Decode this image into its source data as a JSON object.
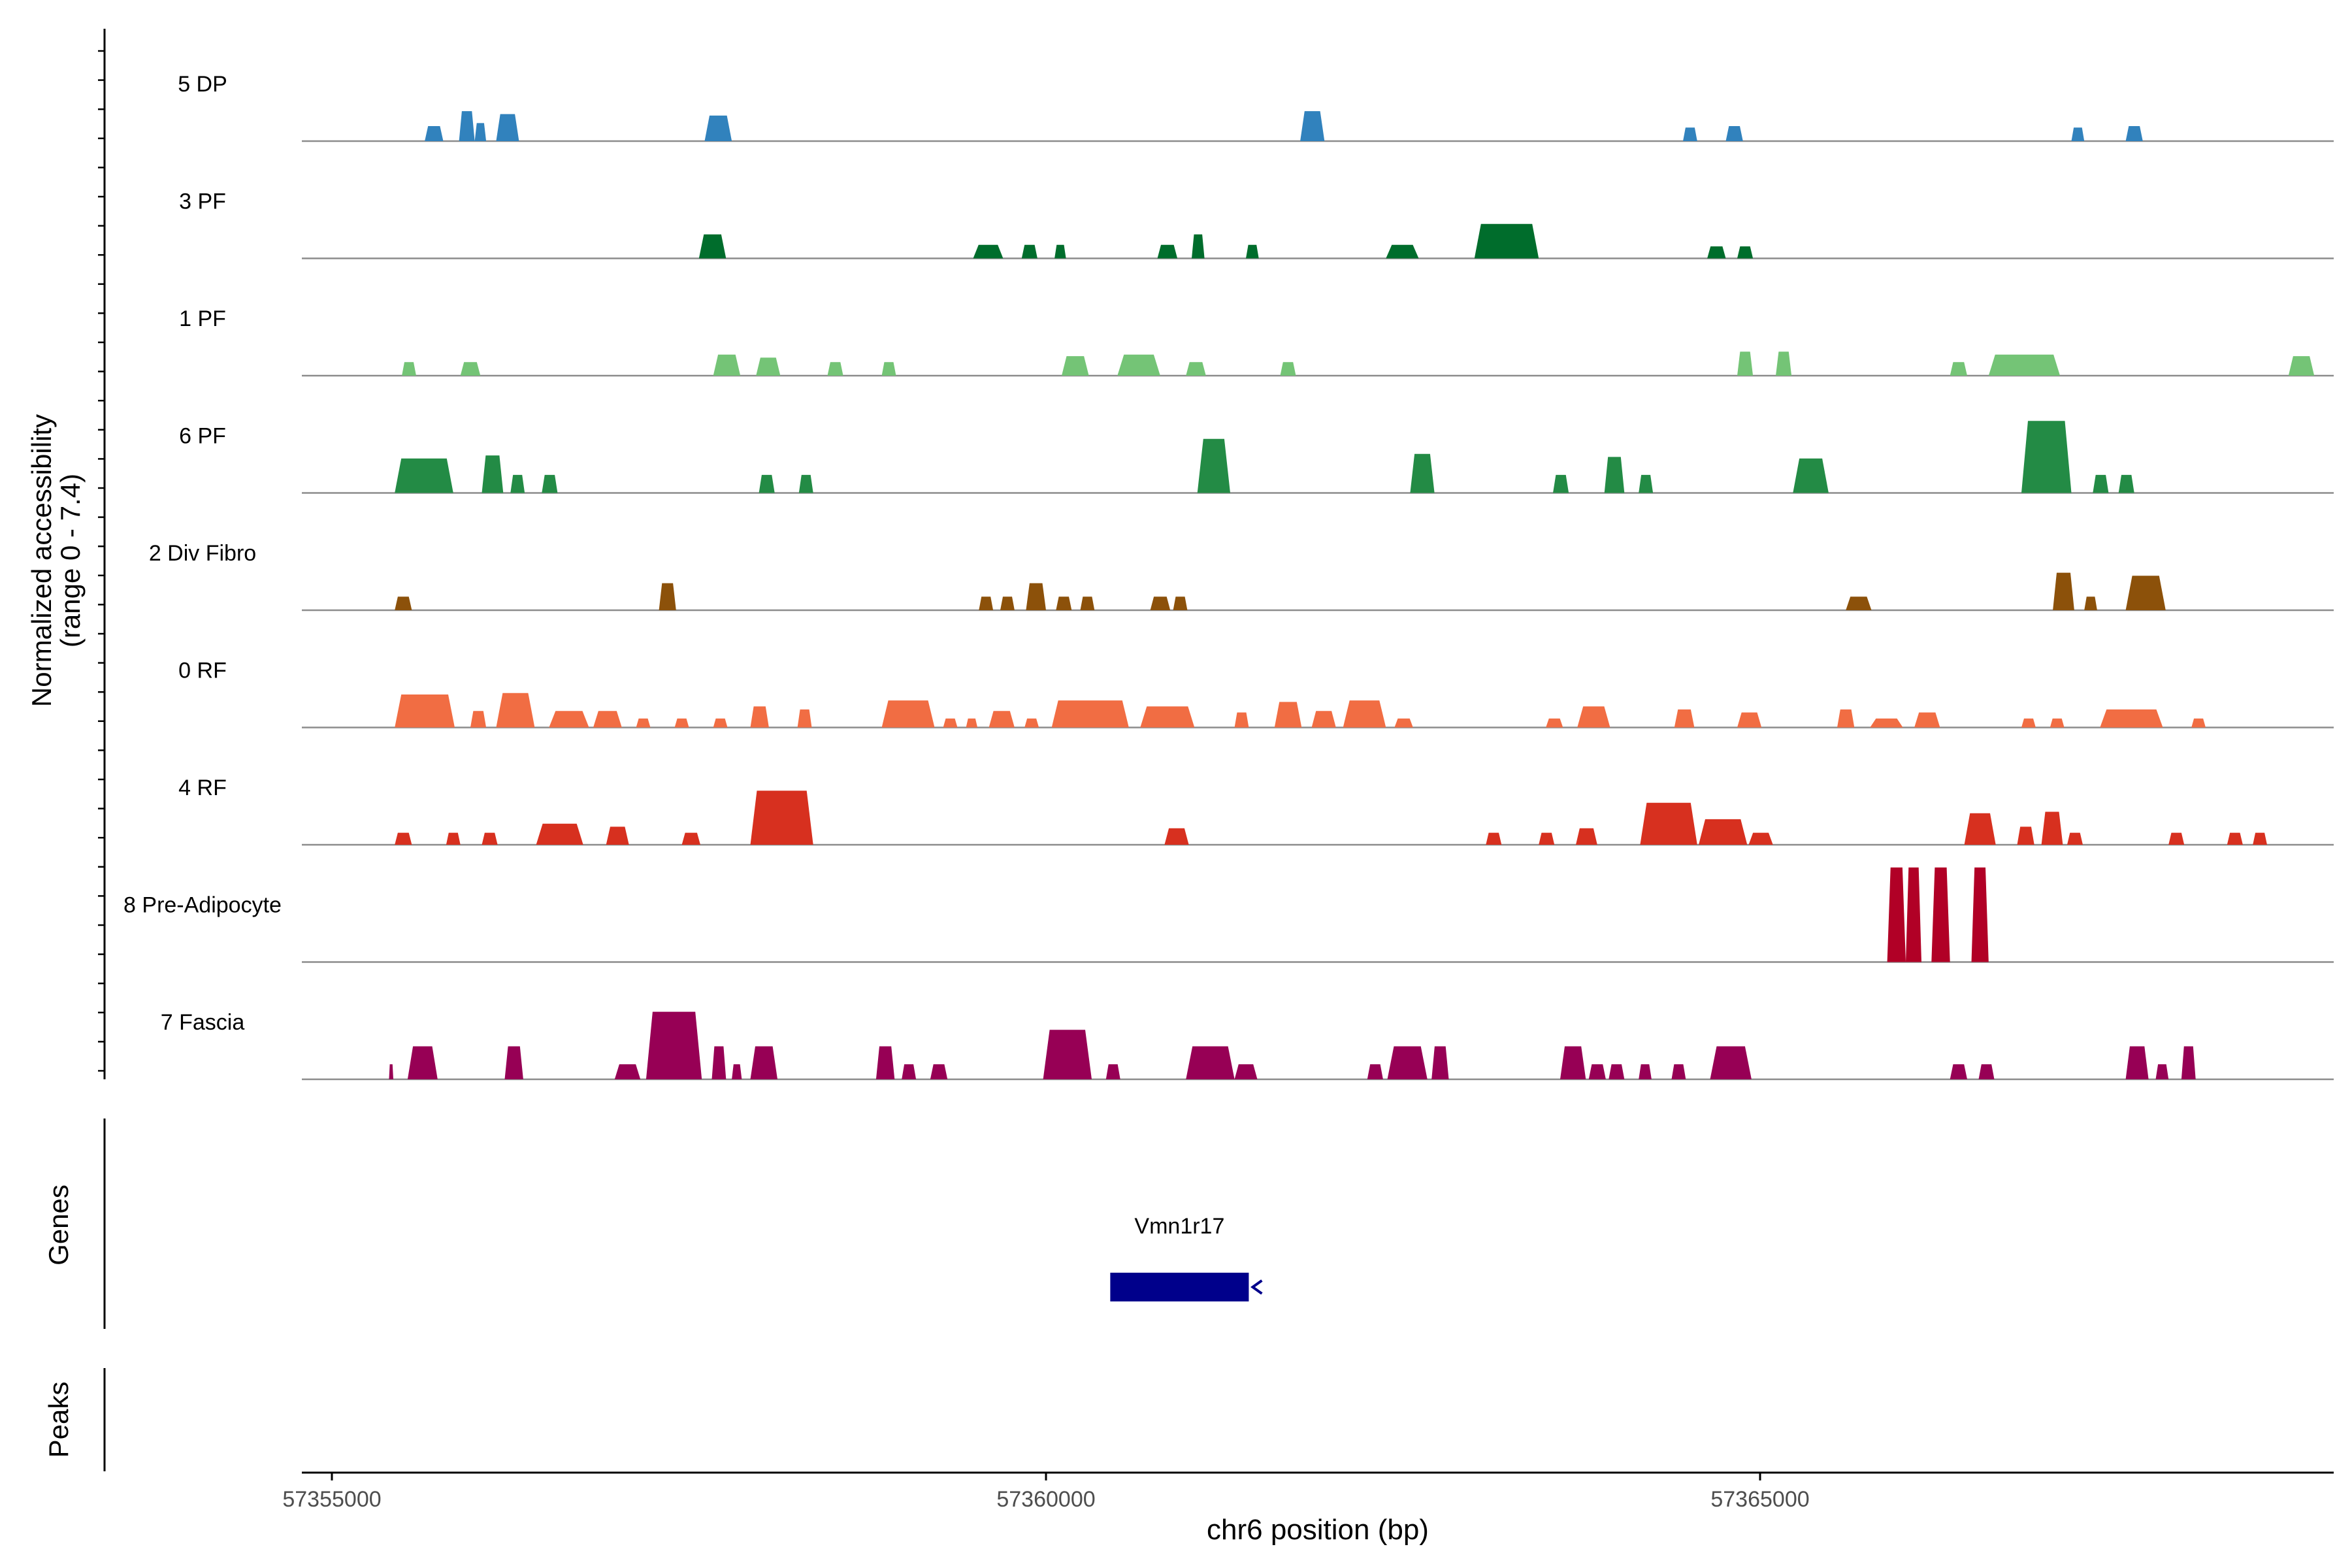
{
  "chart_data": {
    "type": "area",
    "chromosome": "chr6",
    "xlabel": "chr6 position (bp)",
    "ylabel_line1": "Normalized accessibility",
    "ylabel_line2": "(range 0 - 7.4)",
    "xlim": [
      57354600,
      57368900
    ],
    "ylim": [
      0,
      7.4
    ],
    "x_ticks": [
      57355000,
      57360000,
      57365000
    ],
    "x_tick_labels": [
      "57355000",
      "57360000",
      "57365000"
    ],
    "panel_labels": {
      "genes": "Genes",
      "peaks": "Peaks"
    },
    "tracks": [
      {
        "name": "5 DP",
        "color": "#3182bd",
        "peaks": [
          [
            57355650,
            57355780,
            1.0
          ],
          [
            57355890,
            57356000,
            2.0
          ],
          [
            57356000,
            57356080,
            1.2
          ],
          [
            57356150,
            57356310,
            1.8
          ],
          [
            57357610,
            57357800,
            1.7
          ],
          [
            57361780,
            57361950,
            2.0
          ],
          [
            57364460,
            57364560,
            0.9
          ],
          [
            57364760,
            57364880,
            1.0
          ],
          [
            57367180,
            57367270,
            0.9
          ],
          [
            57367560,
            57367680,
            1.0
          ]
        ]
      },
      {
        "name": "3 PF",
        "color": "#006d2c",
        "peaks": [
          [
            57357570,
            57357760,
            1.6
          ],
          [
            57359490,
            57359700,
            0.9
          ],
          [
            57359830,
            57359940,
            0.9
          ],
          [
            57360060,
            57360140,
            0.9
          ],
          [
            57360780,
            57360920,
            0.9
          ],
          [
            57361020,
            57361110,
            1.6
          ],
          [
            57361400,
            57361490,
            0.9
          ],
          [
            57362380,
            57362610,
            0.9
          ],
          [
            57363000,
            57363450,
            2.3
          ],
          [
            57364630,
            57364760,
            0.8
          ],
          [
            57364840,
            57364950,
            0.8
          ]
        ]
      },
      {
        "name": "1 PF",
        "color": "#74c476",
        "peaks": [
          [
            57355490,
            57355590,
            0.9
          ],
          [
            57355900,
            57356040,
            0.9
          ],
          [
            57357670,
            57357860,
            1.4
          ],
          [
            57357970,
            57358140,
            1.2
          ],
          [
            57358470,
            57358580,
            0.9
          ],
          [
            57358850,
            57358950,
            0.9
          ],
          [
            57360110,
            57360300,
            1.3
          ],
          [
            57360500,
            57360800,
            1.4
          ],
          [
            57360980,
            57361120,
            0.9
          ],
          [
            57361640,
            57361750,
            0.9
          ],
          [
            57364840,
            57364950,
            1.6
          ],
          [
            57365110,
            57365220,
            1.6
          ],
          [
            57366330,
            57366450,
            0.9
          ],
          [
            57366600,
            57367100,
            1.4
          ],
          [
            57368700,
            57368880,
            1.3
          ]
        ]
      },
      {
        "name": "6 PF",
        "color": "#238b45",
        "peaks": [
          [
            57355440,
            57355850,
            2.3
          ],
          [
            57356050,
            57356200,
            2.5
          ],
          [
            57356250,
            57356350,
            1.2
          ],
          [
            57356470,
            57356580,
            1.2
          ],
          [
            57357990,
            57358100,
            1.2
          ],
          [
            57358270,
            57358370,
            1.2
          ],
          [
            57361060,
            57361290,
            3.6
          ],
          [
            57362550,
            57362720,
            2.6
          ],
          [
            57363550,
            57363660,
            1.2
          ],
          [
            57363910,
            57364050,
            2.4
          ],
          [
            57364150,
            57364250,
            1.2
          ],
          [
            57365230,
            57365480,
            2.3
          ],
          [
            57366830,
            57367180,
            4.8
          ],
          [
            57367330,
            57367440,
            1.2
          ],
          [
            57367510,
            57367620,
            1.2
          ]
        ]
      },
      {
        "name": "2 Div Fibro",
        "color": "#8c510a",
        "peaks": [
          [
            57355440,
            57355560,
            0.9
          ],
          [
            57357290,
            57357410,
            1.8
          ],
          [
            57359530,
            57359630,
            0.9
          ],
          [
            57359680,
            57359780,
            0.9
          ],
          [
            57359860,
            57360000,
            1.8
          ],
          [
            57360070,
            57360180,
            0.9
          ],
          [
            57360240,
            57360340,
            0.9
          ],
          [
            57360730,
            57360870,
            0.9
          ],
          [
            57360890,
            57360990,
            0.9
          ],
          [
            57365600,
            57365780,
            0.9
          ],
          [
            57367050,
            57367200,
            2.5
          ],
          [
            57367270,
            57367360,
            0.9
          ],
          [
            57367560,
            57367840,
            2.3
          ]
        ]
      },
      {
        "name": "0 RF",
        "color": "#f16d43",
        "peaks": [
          [
            57355440,
            57355860,
            2.2
          ],
          [
            57355970,
            57356080,
            1.1
          ],
          [
            57356150,
            57356420,
            2.3
          ],
          [
            57356520,
            57356800,
            1.1
          ],
          [
            57356830,
            57357030,
            1.1
          ],
          [
            57357130,
            57357230,
            0.6
          ],
          [
            57357400,
            57357500,
            0.6
          ],
          [
            57357670,
            57357770,
            0.6
          ],
          [
            57357930,
            57358060,
            1.4
          ],
          [
            57358260,
            57358360,
            1.2
          ],
          [
            57358850,
            57359220,
            1.8
          ],
          [
            57359280,
            57359380,
            0.6
          ],
          [
            57359440,
            57359520,
            0.6
          ],
          [
            57359600,
            57359780,
            1.1
          ],
          [
            57359850,
            57359950,
            0.6
          ],
          [
            57360040,
            57360580,
            1.8
          ],
          [
            57360660,
            57361040,
            1.4
          ],
          [
            57361320,
            57361420,
            1.0
          ],
          [
            57361600,
            57361790,
            1.7
          ],
          [
            57361860,
            57362030,
            1.1
          ],
          [
            57362080,
            57362380,
            1.8
          ],
          [
            57362440,
            57362570,
            0.6
          ],
          [
            57363500,
            57363620,
            0.6
          ],
          [
            57363720,
            57363950,
            1.4
          ],
          [
            57364400,
            57364540,
            1.2
          ],
          [
            57364840,
            57365010,
            1.0
          ],
          [
            57365540,
            57365660,
            1.2
          ],
          [
            57365770,
            57366000,
            0.6
          ],
          [
            57366080,
            57366260,
            1.0
          ],
          [
            57366830,
            57366930,
            0.6
          ],
          [
            57367030,
            57367130,
            0.6
          ],
          [
            57367380,
            57367820,
            1.2
          ],
          [
            57368020,
            57368120,
            0.6
          ]
        ]
      },
      {
        "name": "4 RF",
        "color": "#d7301f",
        "peaks": [
          [
            57355440,
            57355560,
            0.8
          ],
          [
            57355800,
            57355900,
            0.8
          ],
          [
            57356050,
            57356160,
            0.8
          ],
          [
            57356430,
            57356760,
            1.4
          ],
          [
            57356920,
            57357080,
            1.2
          ],
          [
            57357450,
            57357580,
            0.8
          ],
          [
            57357930,
            57358370,
            3.6
          ],
          [
            57360830,
            57361000,
            1.1
          ],
          [
            57363080,
            57363190,
            0.8
          ],
          [
            57363450,
            57363560,
            0.8
          ],
          [
            57363710,
            57363860,
            1.1
          ],
          [
            57364160,
            57364560,
            2.8
          ],
          [
            57364570,
            57364910,
            1.7
          ],
          [
            57364920,
            57365090,
            0.8
          ],
          [
            57366430,
            57366650,
            2.1
          ],
          [
            57366800,
            57366920,
            1.2
          ],
          [
            57366970,
            57367120,
            2.2
          ],
          [
            57367150,
            57367260,
            0.8
          ],
          [
            57367860,
            57367970,
            0.8
          ],
          [
            57368270,
            57368380,
            0.8
          ],
          [
            57368450,
            57368550,
            0.8
          ]
        ]
      },
      {
        "name": "8 Pre-Adipocyte",
        "color": "#b10026",
        "peaks": [
          [
            57365890,
            57366020,
            6.3
          ],
          [
            57366020,
            57366130,
            6.3
          ],
          [
            57366200,
            57366330,
            6.3
          ],
          [
            57366480,
            57366600,
            6.3
          ]
        ]
      },
      {
        "name": "7 Fascia",
        "color": "#970055",
        "peaks": [
          [
            57355400,
            57355430,
            1.0
          ],
          [
            57355530,
            57355740,
            2.2
          ],
          [
            57356210,
            57356340,
            2.2
          ],
          [
            57356980,
            57357160,
            1.0
          ],
          [
            57357200,
            57357590,
            4.5
          ],
          [
            57357660,
            57357760,
            2.2
          ],
          [
            57357800,
            57357870,
            1.0
          ],
          [
            57357930,
            57358120,
            2.2
          ],
          [
            57358810,
            57358940,
            2.2
          ],
          [
            57358990,
            57359090,
            1.0
          ],
          [
            57359190,
            57359310,
            1.0
          ],
          [
            57359980,
            57360320,
            3.3
          ],
          [
            57360420,
            57360520,
            1.0
          ],
          [
            57360980,
            57361320,
            2.2
          ],
          [
            57361320,
            57361480,
            1.0
          ],
          [
            57362250,
            57362360,
            1.0
          ],
          [
            57362390,
            57362670,
            2.2
          ],
          [
            57362700,
            57362820,
            2.2
          ],
          [
            57363600,
            57363780,
            2.2
          ],
          [
            57363800,
            57363920,
            1.0
          ],
          [
            57363940,
            57364050,
            1.0
          ],
          [
            57364150,
            57364240,
            1.0
          ],
          [
            57364380,
            57364480,
            1.0
          ],
          [
            57364650,
            57364940,
            2.2
          ],
          [
            57366330,
            57366450,
            1.0
          ],
          [
            57366530,
            57366640,
            1.0
          ],
          [
            57367560,
            57367720,
            2.2
          ],
          [
            57367770,
            57367860,
            1.0
          ],
          [
            57367950,
            57368050,
            2.2
          ]
        ]
      }
    ],
    "genes": [
      {
        "name": "Vmn1r17",
        "start": 57360450,
        "end": 57361420,
        "strand": "-",
        "color": "#00008b"
      }
    ]
  }
}
